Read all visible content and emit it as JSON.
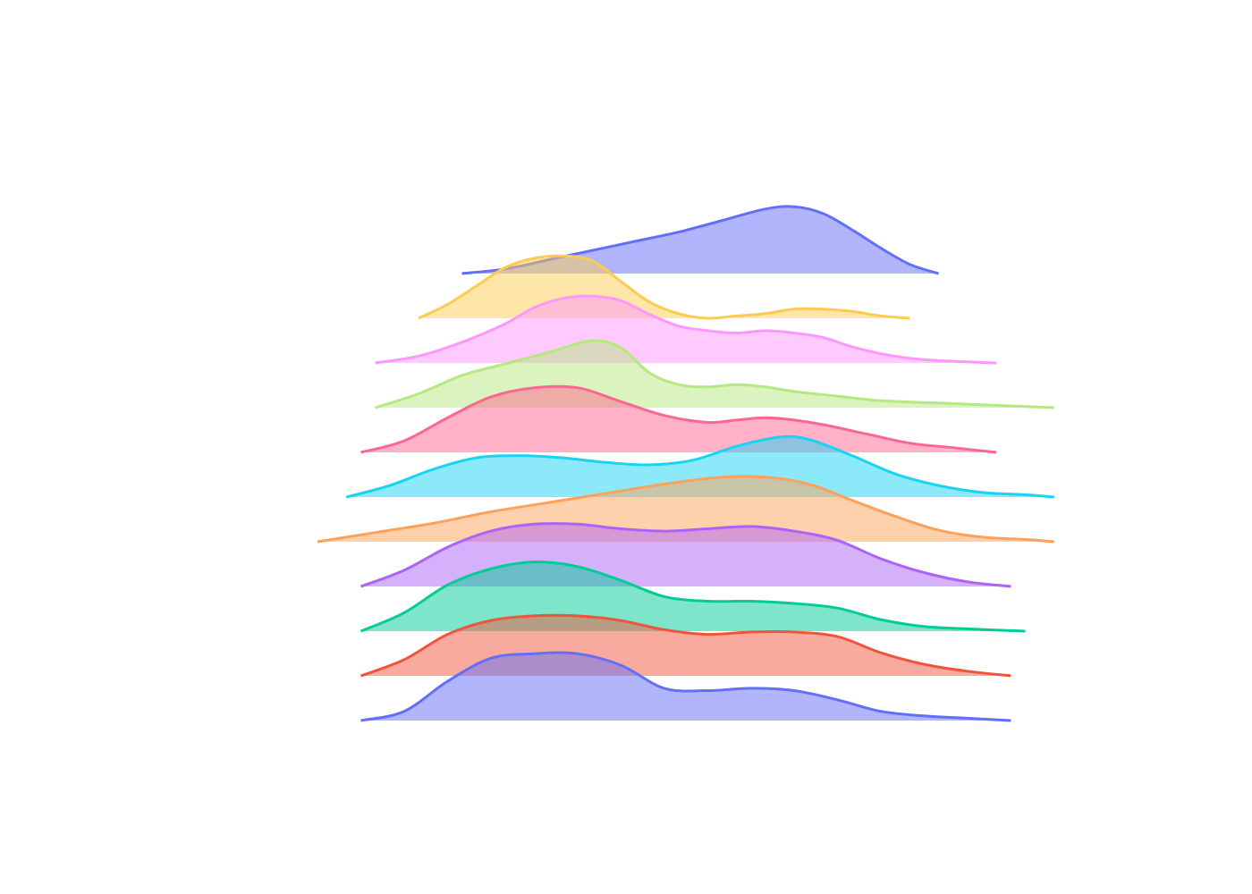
{
  "chart_data": {
    "type": "area",
    "title": "",
    "xlabel": "",
    "ylabel": "",
    "show_axes": false,
    "show_grid": false,
    "legend": "none",
    "x_range": [
      -0.2,
      10.2
    ],
    "series": [
      {
        "color": "#636efa",
        "points": [
          [
            1.8,
            0.0
          ],
          [
            2.4,
            0.02
          ],
          [
            3.0,
            0.06
          ],
          [
            3.6,
            0.1
          ],
          [
            4.2,
            0.14
          ],
          [
            4.8,
            0.18
          ],
          [
            5.4,
            0.23
          ],
          [
            6.0,
            0.28
          ],
          [
            6.4,
            0.29
          ],
          [
            6.8,
            0.26
          ],
          [
            7.2,
            0.19
          ],
          [
            7.6,
            0.11
          ],
          [
            8.0,
            0.04
          ],
          [
            8.4,
            0.0
          ]
        ]
      },
      {
        "color": "#fecb52",
        "points": [
          [
            1.2,
            0.0
          ],
          [
            1.6,
            0.06
          ],
          [
            2.0,
            0.14
          ],
          [
            2.4,
            0.22
          ],
          [
            2.8,
            0.26
          ],
          [
            3.2,
            0.27
          ],
          [
            3.6,
            0.25
          ],
          [
            4.0,
            0.16
          ],
          [
            4.4,
            0.07
          ],
          [
            4.8,
            0.02
          ],
          [
            5.2,
            0.0
          ],
          [
            5.6,
            0.01
          ],
          [
            6.0,
            0.02
          ],
          [
            6.4,
            0.04
          ],
          [
            6.8,
            0.04
          ],
          [
            7.2,
            0.03
          ],
          [
            7.6,
            0.01
          ],
          [
            8.0,
            0.0
          ]
        ]
      },
      {
        "color": "#ff97ff",
        "points": [
          [
            0.6,
            0.0
          ],
          [
            1.2,
            0.03
          ],
          [
            1.8,
            0.09
          ],
          [
            2.4,
            0.17
          ],
          [
            2.8,
            0.24
          ],
          [
            3.2,
            0.28
          ],
          [
            3.6,
            0.29
          ],
          [
            4.0,
            0.27
          ],
          [
            4.4,
            0.21
          ],
          [
            4.8,
            0.16
          ],
          [
            5.2,
            0.14
          ],
          [
            5.6,
            0.13
          ],
          [
            6.0,
            0.14
          ],
          [
            6.4,
            0.13
          ],
          [
            6.8,
            0.11
          ],
          [
            7.2,
            0.07
          ],
          [
            7.6,
            0.04
          ],
          [
            8.0,
            0.02
          ],
          [
            8.4,
            0.01
          ],
          [
            9.2,
            0.0
          ]
        ]
      },
      {
        "color": "#b6e880",
        "points": [
          [
            0.6,
            0.0
          ],
          [
            1.2,
            0.06
          ],
          [
            1.8,
            0.14
          ],
          [
            2.4,
            0.19
          ],
          [
            3.0,
            0.24
          ],
          [
            3.6,
            0.29
          ],
          [
            4.0,
            0.26
          ],
          [
            4.4,
            0.15
          ],
          [
            4.8,
            0.1
          ],
          [
            5.2,
            0.09
          ],
          [
            5.6,
            0.1
          ],
          [
            6.0,
            0.09
          ],
          [
            6.4,
            0.07
          ],
          [
            7.0,
            0.05
          ],
          [
            7.6,
            0.03
          ],
          [
            8.4,
            0.02
          ],
          [
            9.2,
            0.01
          ],
          [
            10.0,
            0.0
          ]
        ]
      },
      {
        "color": "#ff6692",
        "points": [
          [
            0.4,
            0.0
          ],
          [
            1.0,
            0.05
          ],
          [
            1.6,
            0.15
          ],
          [
            2.2,
            0.24
          ],
          [
            2.8,
            0.28
          ],
          [
            3.4,
            0.28
          ],
          [
            4.0,
            0.22
          ],
          [
            4.6,
            0.16
          ],
          [
            5.2,
            0.13
          ],
          [
            5.6,
            0.14
          ],
          [
            6.0,
            0.15
          ],
          [
            6.4,
            0.14
          ],
          [
            6.8,
            0.12
          ],
          [
            7.4,
            0.08
          ],
          [
            8.0,
            0.04
          ],
          [
            8.6,
            0.02
          ],
          [
            9.2,
            0.0
          ]
        ]
      },
      {
        "color": "#19d3f3",
        "points": [
          [
            0.2,
            0.0
          ],
          [
            0.8,
            0.05
          ],
          [
            1.4,
            0.12
          ],
          [
            2.0,
            0.17
          ],
          [
            2.6,
            0.18
          ],
          [
            3.2,
            0.17
          ],
          [
            3.8,
            0.15
          ],
          [
            4.4,
            0.14
          ],
          [
            5.0,
            0.16
          ],
          [
            5.6,
            0.22
          ],
          [
            6.2,
            0.26
          ],
          [
            6.6,
            0.25
          ],
          [
            7.2,
            0.18
          ],
          [
            7.8,
            0.1
          ],
          [
            8.4,
            0.05
          ],
          [
            9.0,
            0.02
          ],
          [
            9.6,
            0.01
          ],
          [
            10.0,
            0.0
          ]
        ]
      },
      {
        "color": "#ffa15a",
        "points": [
          [
            -0.2,
            0.0
          ],
          [
            0.6,
            0.04
          ],
          [
            1.4,
            0.08
          ],
          [
            2.2,
            0.13
          ],
          [
            3.0,
            0.17
          ],
          [
            3.8,
            0.21
          ],
          [
            4.6,
            0.25
          ],
          [
            5.4,
            0.28
          ],
          [
            6.0,
            0.28
          ],
          [
            6.6,
            0.25
          ],
          [
            7.2,
            0.18
          ],
          [
            7.8,
            0.11
          ],
          [
            8.4,
            0.05
          ],
          [
            9.0,
            0.02
          ],
          [
            9.6,
            0.01
          ],
          [
            10.0,
            0.0
          ]
        ]
      },
      {
        "color": "#ab63fa",
        "points": [
          [
            0.4,
            0.0
          ],
          [
            1.0,
            0.07
          ],
          [
            1.6,
            0.17
          ],
          [
            2.2,
            0.24
          ],
          [
            2.8,
            0.27
          ],
          [
            3.4,
            0.27
          ],
          [
            4.0,
            0.25
          ],
          [
            4.6,
            0.24
          ],
          [
            5.2,
            0.25
          ],
          [
            5.8,
            0.26
          ],
          [
            6.4,
            0.24
          ],
          [
            7.0,
            0.2
          ],
          [
            7.6,
            0.12
          ],
          [
            8.2,
            0.06
          ],
          [
            8.8,
            0.02
          ],
          [
            9.4,
            0.0
          ]
        ]
      },
      {
        "color": "#00cc96",
        "points": [
          [
            0.4,
            0.0
          ],
          [
            1.0,
            0.08
          ],
          [
            1.6,
            0.2
          ],
          [
            2.2,
            0.27
          ],
          [
            2.8,
            0.3
          ],
          [
            3.4,
            0.28
          ],
          [
            4.0,
            0.22
          ],
          [
            4.6,
            0.15
          ],
          [
            5.2,
            0.13
          ],
          [
            5.8,
            0.13
          ],
          [
            6.4,
            0.12
          ],
          [
            7.0,
            0.1
          ],
          [
            7.6,
            0.05
          ],
          [
            8.2,
            0.02
          ],
          [
            8.8,
            0.01
          ],
          [
            9.6,
            0.0
          ]
        ]
      },
      {
        "color": "#ef553b",
        "points": [
          [
            0.4,
            0.0
          ],
          [
            1.0,
            0.07
          ],
          [
            1.6,
            0.18
          ],
          [
            2.2,
            0.24
          ],
          [
            2.8,
            0.26
          ],
          [
            3.4,
            0.26
          ],
          [
            4.0,
            0.24
          ],
          [
            4.6,
            0.2
          ],
          [
            5.2,
            0.18
          ],
          [
            5.8,
            0.19
          ],
          [
            6.4,
            0.19
          ],
          [
            7.0,
            0.17
          ],
          [
            7.6,
            0.1
          ],
          [
            8.2,
            0.05
          ],
          [
            8.8,
            0.02
          ],
          [
            9.4,
            0.0
          ]
        ]
      },
      {
        "color": "#636efa",
        "points": [
          [
            0.4,
            0.0
          ],
          [
            1.0,
            0.04
          ],
          [
            1.6,
            0.17
          ],
          [
            2.2,
            0.27
          ],
          [
            2.8,
            0.29
          ],
          [
            3.4,
            0.29
          ],
          [
            4.0,
            0.24
          ],
          [
            4.6,
            0.14
          ],
          [
            5.2,
            0.13
          ],
          [
            5.8,
            0.14
          ],
          [
            6.4,
            0.13
          ],
          [
            7.0,
            0.09
          ],
          [
            7.6,
            0.04
          ],
          [
            8.2,
            0.02
          ],
          [
            8.8,
            0.01
          ],
          [
            9.4,
            0.0
          ]
        ]
      }
    ]
  }
}
